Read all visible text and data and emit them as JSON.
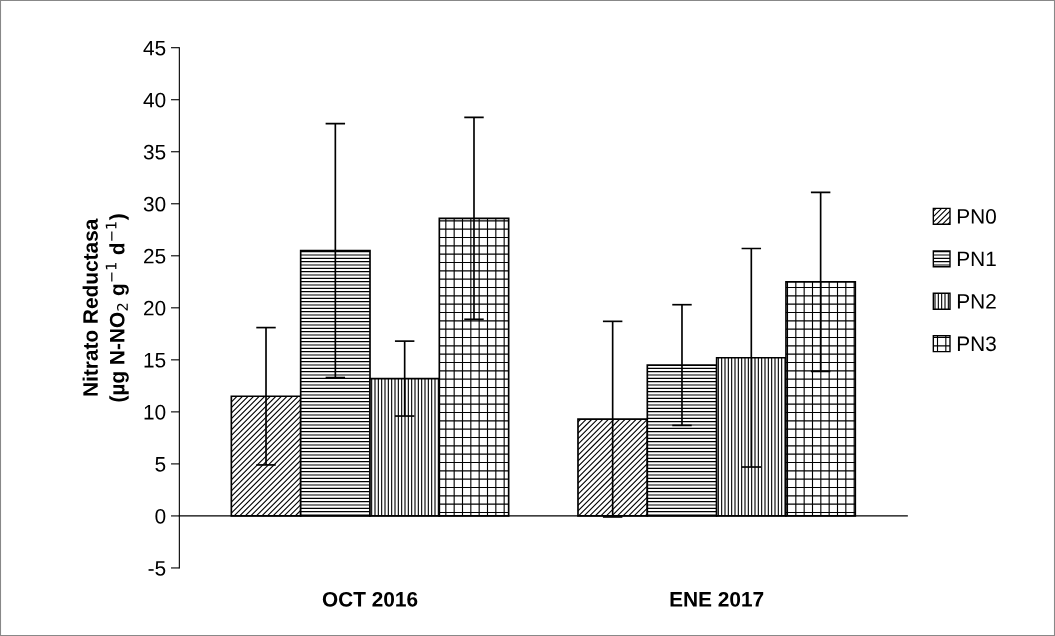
{
  "chart_data": {
    "type": "bar",
    "ylabel": "Nitrato Reductasa\n(µg N-NO$_{2}$ g$^{−1}$ d$^{−1}$)",
    "categories": [
      "OCT 2016",
      "ENE 2017"
    ],
    "series": [
      {
        "name": "PN0",
        "color": "#000000",
        "values": [
          11.5,
          9.3
        ],
        "errors": [
          6.6,
          9.4
        ]
      },
      {
        "name": "PN1",
        "color": "#000000",
        "values": [
          25.5,
          14.5
        ],
        "errors": [
          12.2,
          5.8
        ]
      },
      {
        "name": "PN2",
        "color": "#000000",
        "values": [
          13.2,
          15.2
        ],
        "errors": [
          3.6,
          10.5
        ]
      },
      {
        "name": "PN3",
        "color": "#000000",
        "values": [
          28.6,
          22.5
        ],
        "errors": [
          9.7,
          8.6
        ]
      }
    ],
    "ylim": [
      -5,
      45
    ],
    "yticks": [
      -5,
      0,
      5,
      10,
      15,
      20,
      25,
      30,
      35,
      40,
      45
    ],
    "legend": "right"
  }
}
